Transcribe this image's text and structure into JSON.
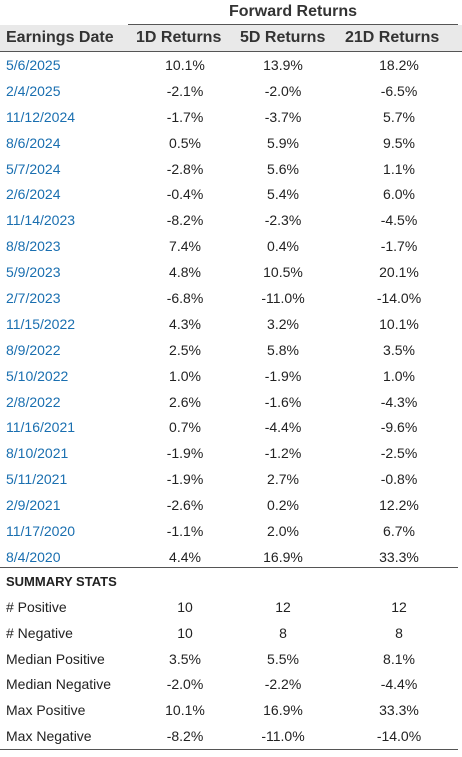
{
  "group_header": "Forward Returns",
  "columns": {
    "date": "Earnings Date",
    "d1": "1D Returns",
    "d5": "5D Returns",
    "d21": "21D Returns"
  },
  "rows": [
    {
      "date": "5/6/2025",
      "d1": "10.1%",
      "d5": "13.9%",
      "d21": "18.2%"
    },
    {
      "date": "2/4/2025",
      "d1": "-2.1%",
      "d5": "-2.0%",
      "d21": "-6.5%"
    },
    {
      "date": "11/12/2024",
      "d1": "-1.7%",
      "d5": "-3.7%",
      "d21": "5.7%"
    },
    {
      "date": "8/6/2024",
      "d1": "0.5%",
      "d5": "5.9%",
      "d21": "9.5%"
    },
    {
      "date": "5/7/2024",
      "d1": "-2.8%",
      "d5": "5.6%",
      "d21": "1.1%"
    },
    {
      "date": "2/6/2024",
      "d1": "-0.4%",
      "d5": "5.4%",
      "d21": "6.0%"
    },
    {
      "date": "11/14/2023",
      "d1": "-8.2%",
      "d5": "-2.3%",
      "d21": "-4.5%"
    },
    {
      "date": "8/8/2023",
      "d1": "7.4%",
      "d5": "0.4%",
      "d21": "-1.7%"
    },
    {
      "date": "5/9/2023",
      "d1": "4.8%",
      "d5": "10.5%",
      "d21": "20.1%"
    },
    {
      "date": "2/7/2023",
      "d1": "-6.8%",
      "d5": "-11.0%",
      "d21": "-14.0%"
    },
    {
      "date": "11/15/2022",
      "d1": "4.3%",
      "d5": "3.2%",
      "d21": "10.1%"
    },
    {
      "date": "8/9/2022",
      "d1": "2.5%",
      "d5": "5.8%",
      "d21": "3.5%"
    },
    {
      "date": "5/10/2022",
      "d1": "1.0%",
      "d5": "-1.9%",
      "d21": "1.0%"
    },
    {
      "date": "2/8/2022",
      "d1": "2.6%",
      "d5": "-1.6%",
      "d21": "-4.3%"
    },
    {
      "date": "11/16/2021",
      "d1": "0.7%",
      "d5": "-4.4%",
      "d21": "-9.6%"
    },
    {
      "date": "8/10/2021",
      "d1": "-1.9%",
      "d5": "-1.2%",
      "d21": "-2.5%"
    },
    {
      "date": "5/11/2021",
      "d1": "-1.9%",
      "d5": "2.7%",
      "d21": "-0.8%"
    },
    {
      "date": "2/9/2021",
      "d1": "-2.6%",
      "d5": "0.2%",
      "d21": "12.2%"
    },
    {
      "date": "11/17/2020",
      "d1": "-1.1%",
      "d5": "2.0%",
      "d21": "6.7%"
    },
    {
      "date": "8/4/2020",
      "d1": "4.4%",
      "d5": "16.9%",
      "d21": "33.3%"
    }
  ],
  "summary_title": "SUMMARY STATS",
  "summary": [
    {
      "label": "# Positive",
      "d1": "10",
      "d5": "12",
      "d21": "12"
    },
    {
      "label": "# Negative",
      "d1": "10",
      "d5": "8",
      "d21": "8"
    },
    {
      "label": "Median Positive",
      "d1": "3.5%",
      "d5": "5.5%",
      "d21": "8.1%"
    },
    {
      "label": "Median Negative",
      "d1": "-2.0%",
      "d5": "-2.2%",
      "d21": "-4.4%"
    },
    {
      "label": "Max Positive",
      "d1": "10.1%",
      "d5": "16.9%",
      "d21": "33.3%"
    },
    {
      "label": "Max Negative",
      "d1": "-8.2%",
      "d5": "-11.0%",
      "d21": "-14.0%"
    }
  ],
  "colors": {
    "link": "#1a6fb0",
    "header_bg": "#e9e9e9",
    "text": "#222222"
  }
}
